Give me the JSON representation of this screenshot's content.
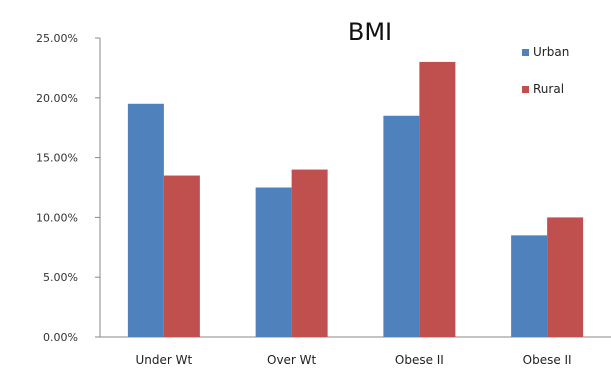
{
  "chart_data": {
    "type": "bar",
    "title": "BMI",
    "categories": [
      "Under Wt",
      "Over Wt",
      "Obese II",
      "Obese II"
    ],
    "series": [
      {
        "name": "Urban",
        "values": [
          19.5,
          12.5,
          18.5,
          8.5
        ],
        "color": "#4f81bd"
      },
      {
        "name": "Rural",
        "values": [
          13.5,
          14.0,
          23.0,
          10.0
        ],
        "color": "#c0504d"
      }
    ],
    "y_ticks": [
      "0.00%",
      "5.00%",
      "10.00%",
      "15.00%",
      "20.00%",
      "25.00%"
    ],
    "ylim": [
      0,
      25
    ],
    "grid": false,
    "legend_position": "top-right",
    "xlabel": "",
    "ylabel": ""
  }
}
